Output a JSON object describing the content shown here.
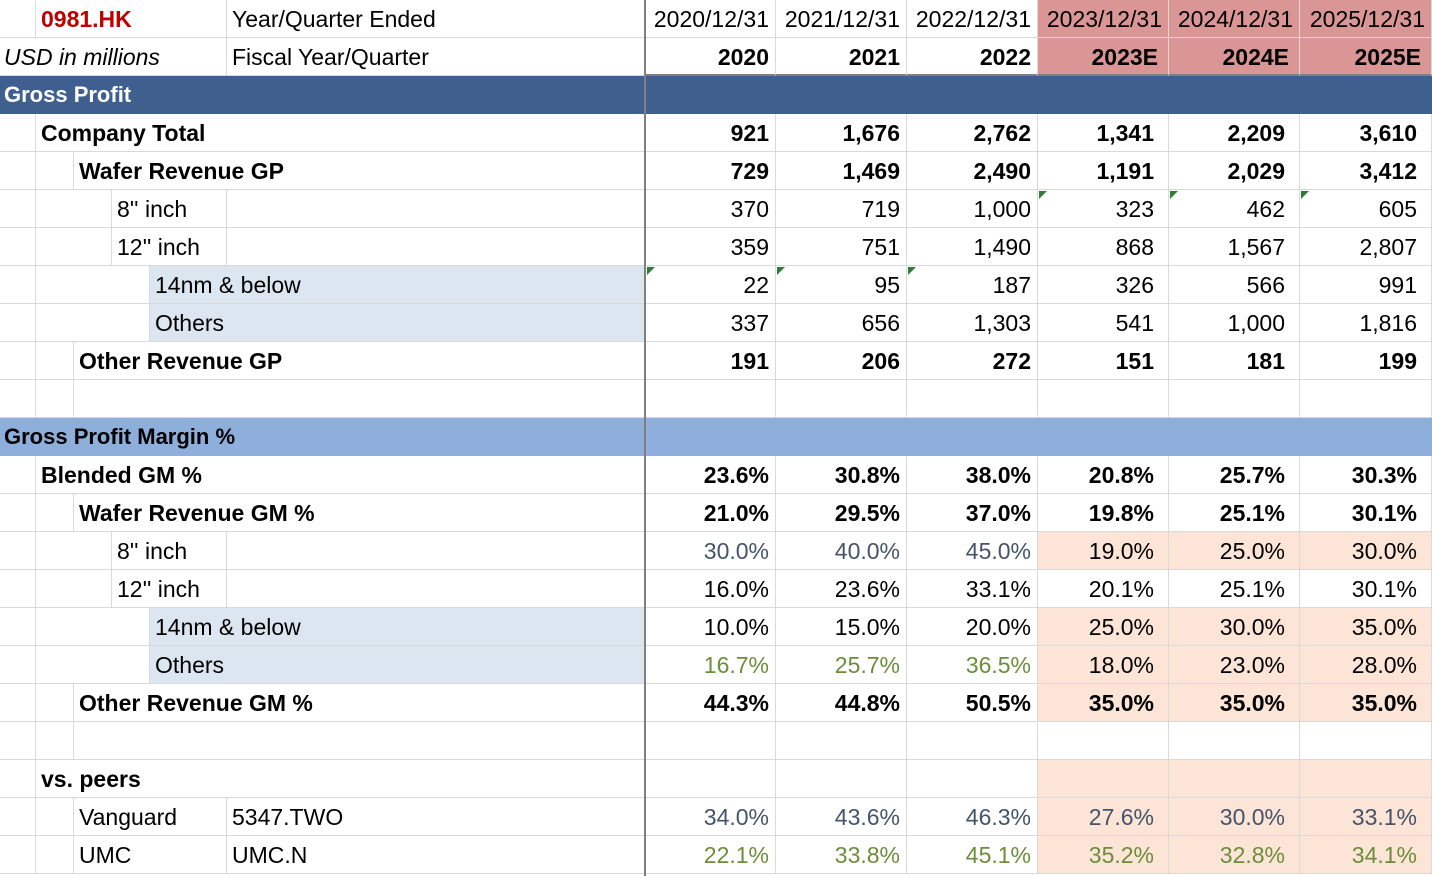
{
  "ticker": "0981.HK",
  "units_label": "USD in millions",
  "header_row1_label": "Year/Quarter Ended",
  "header_row2_label": "Fiscal Year/Quarter",
  "period_end_dates": [
    "2020/12/31",
    "2021/12/31",
    "2022/12/31",
    "2023/12/31",
    "2024/12/31",
    "2025/12/31"
  ],
  "fiscal_years": [
    "2020",
    "2021",
    "2022",
    "2023E",
    "2024E",
    "2025E"
  ],
  "colors": {
    "ticker": "#c00000",
    "section_dark": "#3f5f8f",
    "section_light": "#8eaedc",
    "estimate_header": "#d99694",
    "estimate_input": "#fce4d6",
    "segment_fill": "#dce6f1",
    "input_blue": "#44546a",
    "linked_green": "#6b8e3a",
    "comment_marker": "#2e7d32"
  },
  "gross_profit": {
    "title": "Gross Profit",
    "rows": [
      {
        "label": "Company Total",
        "values": [
          "921",
          "1,676",
          "2,762",
          "1,341",
          "2,209",
          "3,610"
        ]
      },
      {
        "label": "Wafer Revenue GP",
        "values": [
          "729",
          "1,469",
          "2,490",
          "1,191",
          "2,029",
          "3,412"
        ]
      },
      {
        "label": "8'' inch",
        "values": [
          "370",
          "719",
          "1,000",
          "323",
          "462",
          "605"
        ]
      },
      {
        "label": "12'' inch",
        "values": [
          "359",
          "751",
          "1,490",
          "868",
          "1,567",
          "2,807"
        ]
      },
      {
        "label": "14nm & below",
        "values": [
          "22",
          "95",
          "187",
          "326",
          "566",
          "991"
        ]
      },
      {
        "label": "Others",
        "values": [
          "337",
          "656",
          "1,303",
          "541",
          "1,000",
          "1,816"
        ]
      },
      {
        "label": "Other Revenue GP",
        "values": [
          "191",
          "206",
          "272",
          "151",
          "181",
          "199"
        ]
      }
    ]
  },
  "gross_margin": {
    "title": "Gross Profit Margin %",
    "rows": [
      {
        "label": "Blended GM %",
        "values": [
          "23.6%",
          "30.8%",
          "38.0%",
          "20.8%",
          "25.7%",
          "30.3%"
        ]
      },
      {
        "label": "Wafer Revenue GM %",
        "values": [
          "21.0%",
          "29.5%",
          "37.0%",
          "19.8%",
          "25.1%",
          "30.1%"
        ]
      },
      {
        "label": "8'' inch",
        "values": [
          "30.0%",
          "40.0%",
          "45.0%",
          "19.0%",
          "25.0%",
          "30.0%"
        ]
      },
      {
        "label": "12'' inch",
        "values": [
          "16.0%",
          "23.6%",
          "33.1%",
          "20.1%",
          "25.1%",
          "30.1%"
        ]
      },
      {
        "label": "14nm & below",
        "values": [
          "10.0%",
          "15.0%",
          "20.0%",
          "25.0%",
          "30.0%",
          "35.0%"
        ]
      },
      {
        "label": "Others",
        "values": [
          "16.7%",
          "25.7%",
          "36.5%",
          "18.0%",
          "23.0%",
          "28.0%"
        ]
      },
      {
        "label": "Other Revenue GM %",
        "values": [
          "44.3%",
          "44.8%",
          "50.5%",
          "35.0%",
          "35.0%",
          "35.0%"
        ]
      }
    ]
  },
  "peers": {
    "title": "vs. peers",
    "rows": [
      {
        "label": "Vanguard",
        "ticker": "5347.TWO",
        "values": [
          "34.0%",
          "43.6%",
          "46.3%",
          "27.6%",
          "30.0%",
          "33.1%"
        ]
      },
      {
        "label": "UMC",
        "ticker": "UMC.N",
        "values": [
          "22.1%",
          "33.8%",
          "45.1%",
          "35.2%",
          "32.8%",
          "34.1%"
        ]
      }
    ]
  }
}
